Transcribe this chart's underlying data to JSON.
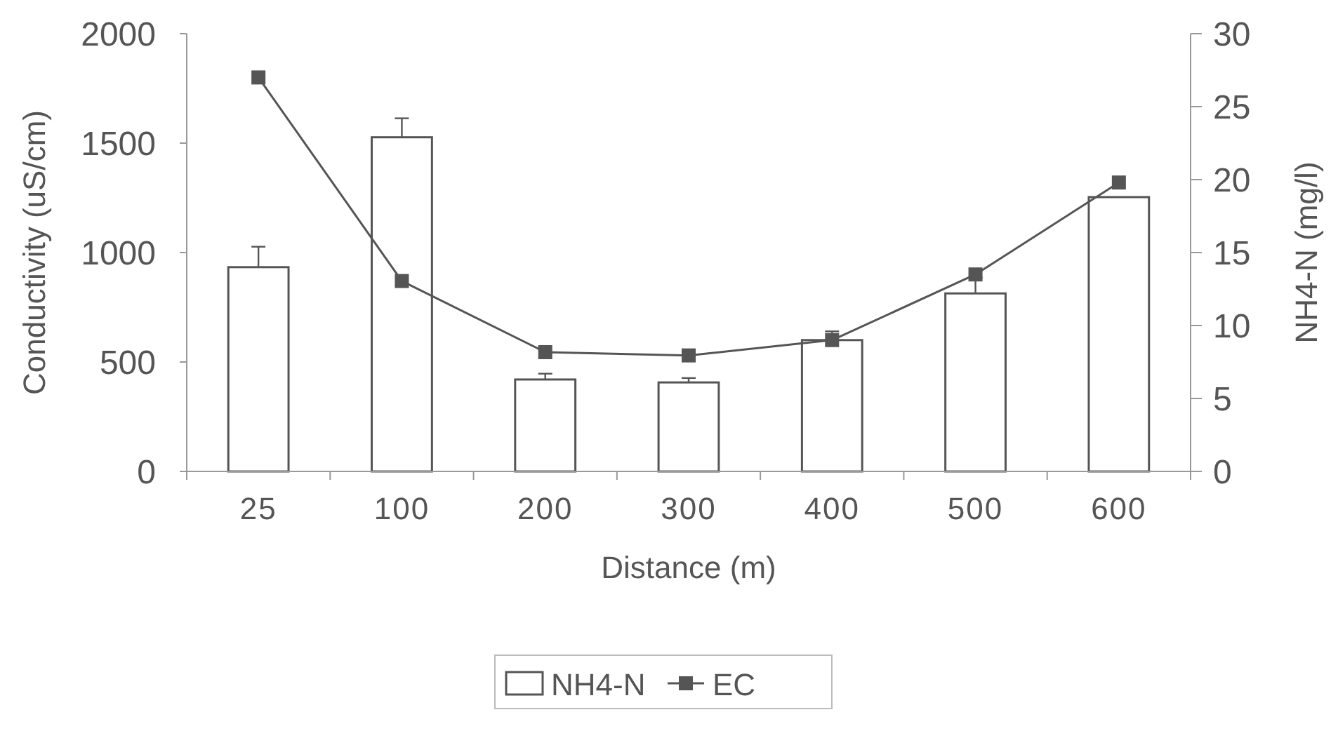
{
  "chart_data": {
    "type": "bar",
    "xlabel": "Distance (m)",
    "ylabel": "Conductivity (uS/cm)",
    "y2label": "NH4-N (mg/l)",
    "categories": [
      "25",
      "100",
      "200",
      "300",
      "400",
      "500",
      "600"
    ],
    "series": [
      {
        "name": "NH4-N",
        "axis": "y2",
        "color": "#ffffff",
        "values": [
          14.0,
          22.9,
          6.3,
          6.1,
          9.0,
          12.2,
          18.8
        ],
        "errors": [
          1.4,
          1.3,
          0.4,
          0.3,
          0.6,
          1.1,
          null
        ]
      },
      {
        "name": "EC",
        "type": "line",
        "axis": "y",
        "color": "#555555",
        "values": [
          1800,
          870,
          545,
          530,
          600,
          900,
          1320
        ]
      }
    ],
    "ylim": [
      0,
      2000
    ],
    "yticks": [
      0,
      500,
      1000,
      1500,
      2000
    ],
    "y2lim": [
      0,
      30
    ],
    "y2ticks": [
      0,
      5,
      10,
      15,
      20,
      25,
      30
    ],
    "grid": false,
    "legend": "bottom",
    "marker": "square",
    "line_style": "solid"
  }
}
